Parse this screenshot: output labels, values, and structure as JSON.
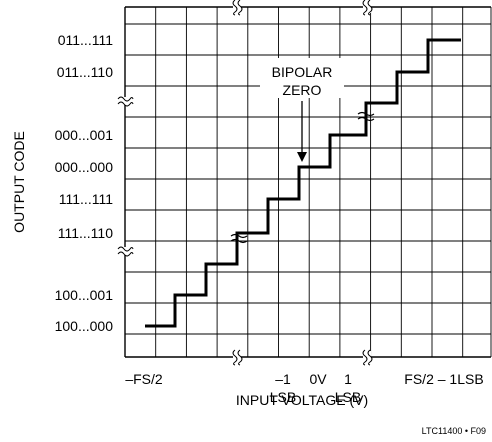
{
  "chart_data": {
    "type": "line",
    "title": "",
    "xlabel": "INPUT VOLTAGE (V)",
    "ylabel": "OUTPUT CODE",
    "grid": true,
    "y_codes": [
      "100...000",
      "100...001",
      "111...110",
      "111...111",
      "000...000",
      "000...001",
      "011...110",
      "011...111"
    ],
    "x_ticks": [
      {
        "lines": [
          "–FS/2"
        ]
      },
      {
        "lines": [
          "–1",
          "LSB"
        ]
      },
      {
        "lines": [
          "0V"
        ]
      },
      {
        "lines": [
          "1",
          "LSB"
        ]
      },
      {
        "lines": [
          "FS/2 – 1LSB"
        ]
      }
    ],
    "annotation": {
      "lines": [
        "BIPOLAR",
        "ZERO"
      ]
    },
    "figure_id": "LTC11400 • F09",
    "axis_breaks": "y at 111...110/100...001 and 000...001/011...110; x at -1LSB side and +1LSB side",
    "series": [
      {
        "values": [
          {
            "x": "–FS/2",
            "y": "100...000"
          },
          {
            "x": "–FS/2 + 1LSB",
            "y": "100...001"
          },
          {
            "x": "–2LSB",
            "y": "111...110"
          },
          {
            "x": "–1LSB",
            "y": "111...111"
          },
          {
            "x": "0V",
            "y": "000...000"
          },
          {
            "x": "1LSB",
            "y": "000...001"
          },
          {
            "x": "FS/2 – 2LSB",
            "y": "011...110"
          },
          {
            "x": "FS/2 – 1LSB",
            "y": "011...111"
          }
        ]
      }
    ]
  }
}
